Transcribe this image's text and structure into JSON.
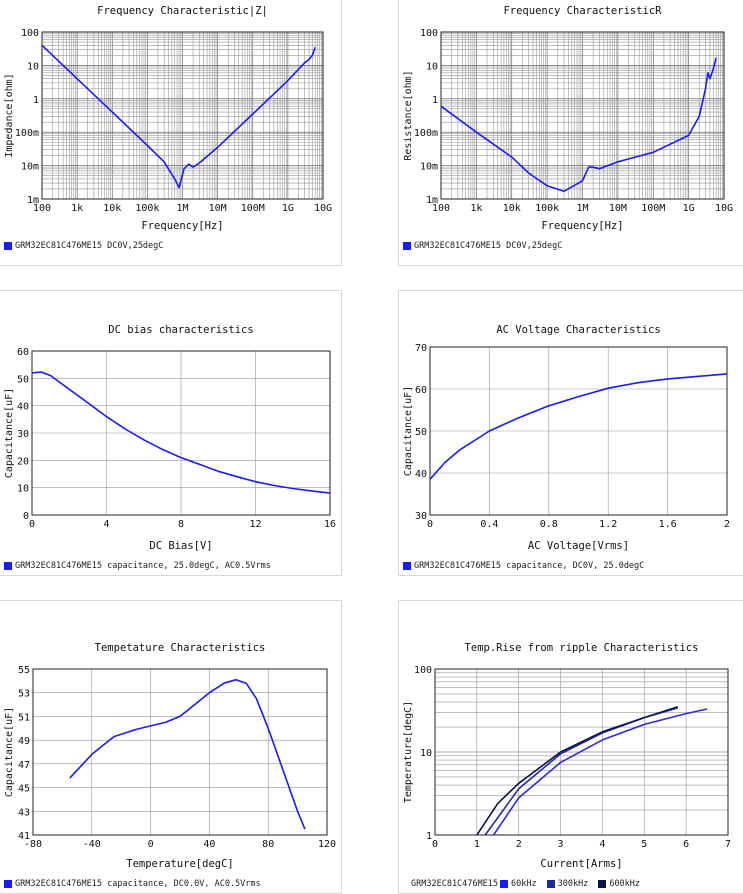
{
  "legend_color": "#1a1aff",
  "chart_data": [
    {
      "type": "line",
      "title": "Frequency  Characteristic|Z|",
      "xlabel": "Frequency[Hz]",
      "ylabel": "Impedance[ohm]",
      "xscale": "log",
      "yscale": "log",
      "xlim": [
        100,
        10000000000
      ],
      "ylim": [
        0.001,
        100
      ],
      "xticks": [
        "100",
        "1k",
        "10k",
        "100k",
        "1M",
        "10M",
        "100M",
        "1G",
        "10G"
      ],
      "yticks": [
        "1m",
        "10m",
        "100m",
        "1",
        "10",
        "100"
      ],
      "grid": "on",
      "legend_position": "bottom-left",
      "legend": [
        {
          "label": "GRM32EC81C476ME15 DC0V,25degC",
          "color": "#1a1aff"
        }
      ],
      "series": [
        {
          "name": "GRM32EC81C476ME15 DC0V,25degC",
          "color": "#1a1aff",
          "x": [
            100,
            1000,
            10000,
            100000,
            300000,
            600000,
            800000,
            1100000,
            1500000,
            2000000,
            3000000,
            10000000,
            100000000,
            1000000000,
            3000000000,
            4000000000,
            5000000000,
            6000000000
          ],
          "y": [
            40,
            4,
            0.4,
            0.04,
            0.013,
            0.004,
            0.0022,
            0.008,
            0.011,
            0.009,
            0.012,
            0.035,
            0.35,
            3.5,
            12,
            15,
            20,
            35
          ]
        }
      ]
    },
    {
      "type": "line",
      "title": "Frequency  CharacteristicR",
      "xlabel": "Frequency[Hz]",
      "ylabel": "Resistance[ohm]",
      "xscale": "log",
      "yscale": "log",
      "xlim": [
        100,
        10000000000
      ],
      "ylim": [
        0.001,
        100
      ],
      "xticks": [
        "100",
        "1k",
        "10k",
        "100k",
        "1M",
        "10M",
        "100M",
        "1G",
        "10G"
      ],
      "yticks": [
        "1m",
        "10m",
        "100m",
        "1",
        "10",
        "100"
      ],
      "grid": "on",
      "legend_position": "bottom-left",
      "legend": [
        {
          "label": "GRM32EC81C476ME15 DC0V,25degC",
          "color": "#1a1aff"
        }
      ],
      "series": [
        {
          "name": "GRM32EC81C476ME15 DC0V,25degC",
          "color": "#1a1aff",
          "x": [
            100,
            1000,
            10000,
            30000,
            100000,
            300000,
            1000000,
            1500000,
            2000000,
            3000000,
            10000000,
            100000000,
            1000000000,
            2000000000,
            3000000000,
            3500000000,
            4000000000,
            5000000000,
            6000000000
          ],
          "y": [
            0.6,
            0.1,
            0.018,
            0.006,
            0.0025,
            0.0017,
            0.0035,
            0.009,
            0.009,
            0.008,
            0.013,
            0.025,
            0.08,
            0.3,
            2,
            6,
            4,
            8,
            17
          ]
        }
      ]
    },
    {
      "type": "line",
      "title": "DC bias characteristics",
      "xlabel": "DC Bias[V]",
      "ylabel": "Capacitance[uF]",
      "xlim": [
        0,
        16
      ],
      "ylim": [
        0,
        60
      ],
      "xticks": [
        "0",
        "4",
        "8",
        "12",
        "16"
      ],
      "yticks": [
        "0",
        "10",
        "20",
        "30",
        "40",
        "50",
        "60"
      ],
      "grid": "on",
      "legend_position": "bottom-left",
      "legend": [
        {
          "label": "GRM32EC81C476ME15 capacitance, 25.0degC, AC0.5Vrms",
          "color": "#1a1aff"
        }
      ],
      "series": [
        {
          "name": "GRM32EC81C476ME15 capacitance, 25.0degC, AC0.5Vrms",
          "color": "#1a1aff",
          "x": [
            0,
            0.5,
            1,
            2,
            3,
            4,
            5,
            6,
            7,
            8,
            9,
            10,
            11,
            12,
            13,
            14,
            15,
            16
          ],
          "y": [
            52,
            52.3,
            51,
            46,
            41,
            36,
            31.5,
            27.5,
            24,
            21,
            18.5,
            16,
            14,
            12.2,
            10.8,
            9.7,
            8.8,
            8
          ]
        }
      ]
    },
    {
      "type": "line",
      "title": "AC Voltage Characteristics",
      "xlabel": "AC Voltage[Vrms]",
      "ylabel": "Capacitance[uF]",
      "xlim": [
        0,
        2
      ],
      "ylim": [
        30,
        70
      ],
      "xticks": [
        "0",
        "0.4",
        "0.8",
        "1.2",
        "1.6",
        "2"
      ],
      "yticks": [
        "30",
        "40",
        "50",
        "60",
        "70"
      ],
      "grid": "on",
      "legend_position": "bottom-left",
      "legend": [
        {
          "label": "GRM32EC81C476ME15 capacitance, DC0V, 25.0degC",
          "color": "#1a1aff"
        }
      ],
      "series": [
        {
          "name": "GRM32EC81C476ME15 capacitance, DC0V, 25.0degC",
          "color": "#1a1aff",
          "x": [
            0,
            0.1,
            0.2,
            0.4,
            0.6,
            0.8,
            1.0,
            1.2,
            1.4,
            1.6,
            1.8,
            2.0
          ],
          "y": [
            38.5,
            42.5,
            45.5,
            50,
            53.2,
            56,
            58.2,
            60.2,
            61.5,
            62.4,
            63,
            63.6
          ]
        }
      ]
    },
    {
      "type": "line",
      "title": "Tempetature  Characteristics",
      "xlabel": "Temperature[degC]",
      "ylabel": "Capacitance[uF]",
      "xlim": [
        -80,
        120
      ],
      "ylim": [
        41,
        55
      ],
      "xticks": [
        "-80",
        "-40",
        "0",
        "40",
        "80",
        "120"
      ],
      "yticks": [
        "41",
        "43",
        "45",
        "47",
        "49",
        "51",
        "53",
        "55"
      ],
      "grid": "on",
      "legend_position": "bottom-left",
      "legend": [
        {
          "label": "GRM32EC81C476ME15 capacitance, DC0.0V, AC0.5Vrms",
          "color": "#1a1aff"
        }
      ],
      "series": [
        {
          "name": "GRM32EC81C476ME15 capacitance, DC0.0V, AC0.5Vrms",
          "color": "#1a1aff",
          "x": [
            -55,
            -40,
            -25,
            -10,
            0,
            10,
            20,
            30,
            40,
            50,
            58,
            65,
            72,
            80,
            90,
            100,
            105
          ],
          "y": [
            45.8,
            47.8,
            49.3,
            49.9,
            50.2,
            50.5,
            51,
            52,
            53,
            53.8,
            54.1,
            53.8,
            52.5,
            50,
            46.5,
            43,
            41.5
          ]
        }
      ]
    },
    {
      "type": "line",
      "title": "Temp.Rise from ripple Characteristics",
      "xlabel": "Current[Arms]",
      "ylabel": "Temperature[degC]",
      "yscale": "log",
      "xlim": [
        0,
        7
      ],
      "ylim": [
        1,
        100
      ],
      "xticks": [
        "0",
        "1",
        "2",
        "3",
        "4",
        "5",
        "6",
        "7"
      ],
      "yticks": [
        "1",
        "10",
        "100"
      ],
      "grid": "on",
      "legend_position": "bottom-left",
      "legend_prefix": "GRM32EC81C476ME15",
      "legend": [
        {
          "label": "60kHz",
          "color": "#1a1aff"
        },
        {
          "label": "300kHz",
          "color": "#1a2a9a"
        },
        {
          "label": "600kHz",
          "color": "#0a1450"
        }
      ],
      "series": [
        {
          "name": "60kHz",
          "color": "#2a2ae0",
          "x": [
            1.4,
            2,
            3,
            4,
            5,
            6,
            6.5
          ],
          "y": [
            1,
            2.8,
            7.5,
            14,
            21.5,
            29,
            33
          ]
        },
        {
          "name": "300kHz",
          "color": "#232a9a",
          "x": [
            1.2,
            2,
            3,
            4,
            5,
            5.8
          ],
          "y": [
            1,
            3.6,
            9.5,
            17,
            26,
            34
          ]
        },
        {
          "name": "600kHz",
          "color": "#0a1450",
          "x": [
            1.0,
            1.5,
            2,
            3,
            4,
            5,
            5.8
          ],
          "y": [
            1,
            2.4,
            4.2,
            10,
            17.5,
            26,
            35
          ]
        }
      ]
    }
  ]
}
